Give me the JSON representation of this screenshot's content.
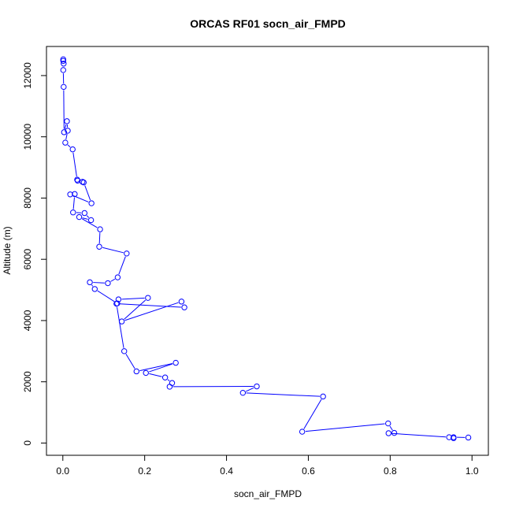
{
  "chart_data": {
    "type": "line",
    "title": "ORCAS RF01 socn_air_FMPD",
    "xlabel": "socn_air_FMPD",
    "ylabel": "Altitude (m)",
    "xlim": [
      -0.04,
      1.04
    ],
    "ylim": [
      -400,
      12950
    ],
    "x_ticks": [
      0.0,
      0.2,
      0.4,
      0.6,
      0.8,
      1.0
    ],
    "x_tick_labels": [
      "0.0",
      "0.2",
      "0.4",
      "0.6",
      "0.8",
      "1.0"
    ],
    "y_ticks": [
      0,
      2000,
      4000,
      6000,
      8000,
      10000,
      12000
    ],
    "y_tick_labels": [
      "0",
      "2000",
      "4000",
      "6000",
      "8000",
      "10000",
      "12000"
    ],
    "marker": "open-circle",
    "grid": false,
    "color": "#0000ff",
    "x": [
      0.001,
      0.001,
      0.002,
      0.001,
      0.002,
      0.003,
      0.01,
      0.012,
      0.006,
      0.024,
      0.035,
      0.036,
      0.048,
      0.051,
      0.07,
      0.018,
      0.029,
      0.025,
      0.053,
      0.069,
      0.04,
      0.091,
      0.089,
      0.156,
      0.134,
      0.11,
      0.066,
      0.078,
      0.133,
      0.136,
      0.208,
      0.144,
      0.29,
      0.297,
      0.131,
      0.15,
      0.18,
      0.276,
      0.203,
      0.25,
      0.267,
      0.261,
      0.474,
      0.44,
      0.636,
      0.585,
      0.795,
      0.81,
      0.796,
      0.944,
      0.955,
      0.955,
      0.991
    ],
    "y": [
      12530,
      12480,
      12390,
      12180,
      11630,
      10150,
      10510,
      10200,
      9810,
      9590,
      8600,
      8570,
      8530,
      8510,
      7830,
      8120,
      8130,
      7530,
      7510,
      7280,
      7380,
      6980,
      6410,
      6190,
      5410,
      5220,
      5250,
      5030,
      4560,
      4690,
      4740,
      3970,
      4620,
      4430,
      4550,
      3000,
      2340,
      2620,
      2290,
      2140,
      1960,
      1840,
      1850,
      1640,
      1520,
      370,
      640,
      330,
      320,
      190,
      160,
      190,
      180
    ]
  }
}
